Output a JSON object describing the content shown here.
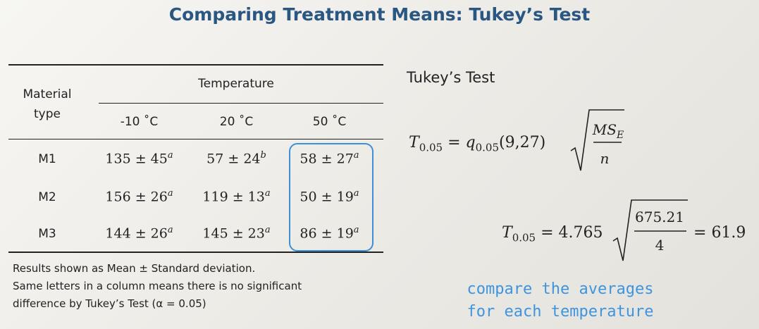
{
  "title": "Comparing Treatment Means: Tukey’s Test",
  "table": {
    "material_header_line1": "Material",
    "material_header_line2": "type",
    "group_header": "Temperature",
    "columns": [
      "-10 ˚C",
      "20 ˚C",
      "50 ˚C"
    ],
    "rows": [
      {
        "label": "M1",
        "cells": [
          {
            "mean": "135",
            "sd": "45",
            "letter": "a"
          },
          {
            "mean": "57",
            "sd": "24",
            "letter": "b"
          },
          {
            "mean": "58",
            "sd": "27",
            "letter": "a"
          }
        ]
      },
      {
        "label": "M2",
        "cells": [
          {
            "mean": "156",
            "sd": "26",
            "letter": "a"
          },
          {
            "mean": "119",
            "sd": "13",
            "letter": "a"
          },
          {
            "mean": "50",
            "sd": "19",
            "letter": "a"
          }
        ]
      },
      {
        "label": "M3",
        "cells": [
          {
            "mean": "144",
            "sd": "26",
            "letter": "a"
          },
          {
            "mean": "145",
            "sd": "23",
            "letter": "a"
          },
          {
            "mean": "86",
            "sd": "19",
            "letter": "a"
          }
        ]
      }
    ],
    "highlight_color": "#3d8fd6"
  },
  "notes": {
    "line1": "Results shown as Mean ± Standard deviation.",
    "line2": "Same letters in a column means there is no significant",
    "line3": "difference by Tukey’s Test (α = 0.05)"
  },
  "side": {
    "heading": "Tukey’s Test",
    "formula1": {
      "lhs": "T",
      "lhs_sub": "0.05",
      "q": "q",
      "q_sub": "0.05",
      "args": "(9,27)",
      "num": "MS",
      "num_sub": "E",
      "den": "n"
    },
    "formula2": {
      "lhs": "T",
      "lhs_sub": "0.05",
      "coef": "4.765",
      "num": "675.21",
      "den": "4",
      "result": "61.9"
    },
    "handwritten_line1": "compare the averages",
    "handwritten_line2": "for each temperature",
    "handwritten_color": "#3f94e0"
  },
  "colors": {
    "title": "#2a5782"
  }
}
